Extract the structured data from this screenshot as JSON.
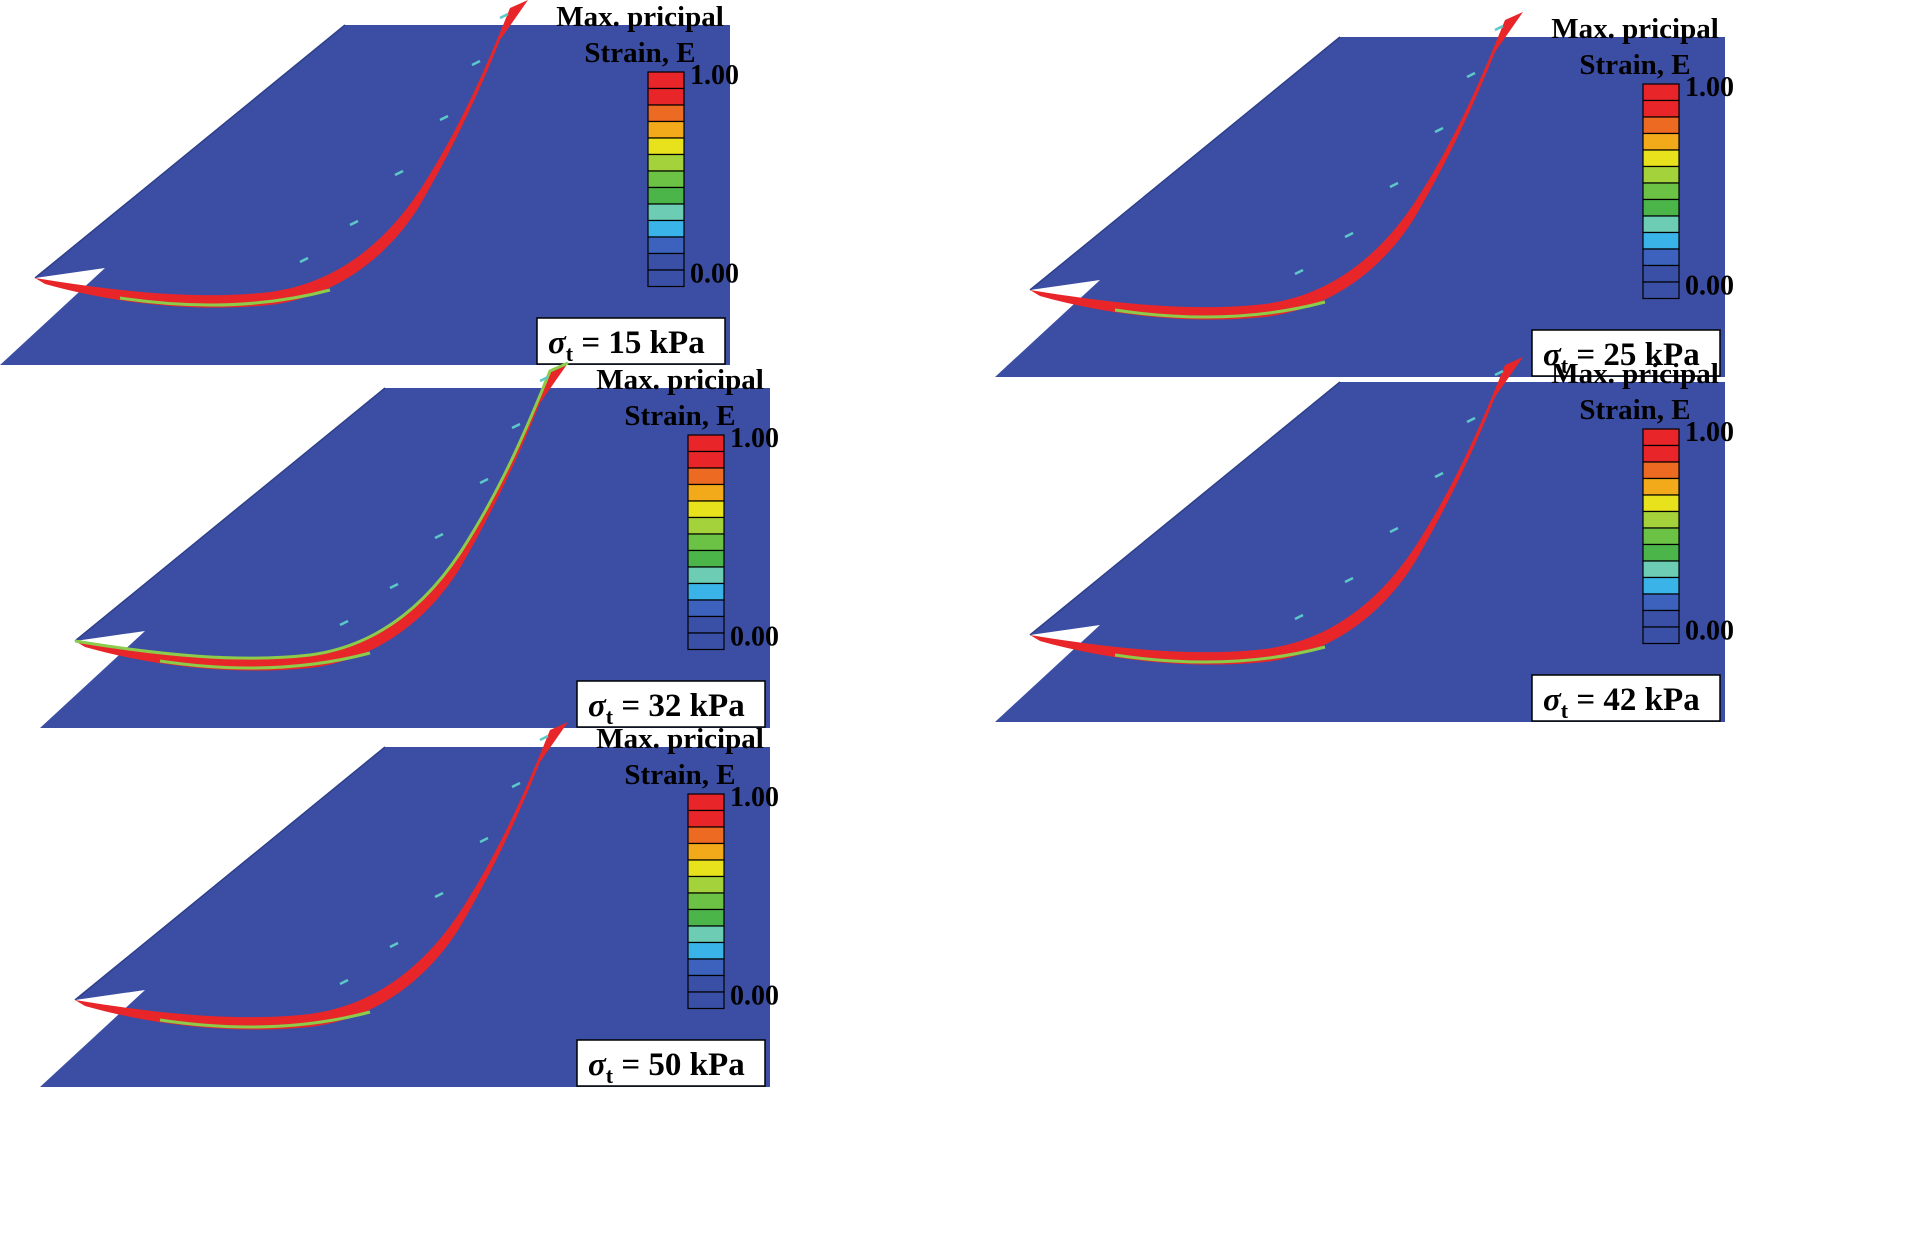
{
  "legend": {
    "title_line1": "Max. pricipal",
    "title_line2": "Strain, E",
    "max_label": "1.00",
    "min_label": "0.00",
    "colors": [
      "#e8262a",
      "#e8262a",
      "#ec6a22",
      "#f2aa1a",
      "#e8e21c",
      "#a4d23a",
      "#6cc244",
      "#4cb54a",
      "#6cccb4",
      "#3ab4e8",
      "#3c62be",
      "#3a4fa6",
      "#3a4fa6"
    ]
  },
  "colors": {
    "soil": "#3b4ea3",
    "shear_band": "#e8262a",
    "band_edge": "#8ccc4a",
    "band_edge_alt": "#5cc8c8"
  },
  "panels": [
    {
      "id": "panel-15",
      "symbol": "σ",
      "subscript": "t",
      "value_text": " = 15 kPa"
    },
    {
      "id": "panel-25",
      "symbol": "σ",
      "subscript": "t",
      "value_text": " = 25 kPa"
    },
    {
      "id": "panel-32",
      "symbol": "σ",
      "subscript": "t",
      "value_text": " = 32 kPa"
    },
    {
      "id": "panel-42",
      "symbol": "σ",
      "subscript": "t",
      "value_text": " = 42 kPa"
    },
    {
      "id": "panel-50",
      "symbol": "σ",
      "subscript": "t",
      "value_text": " = 50 kPa"
    }
  ]
}
